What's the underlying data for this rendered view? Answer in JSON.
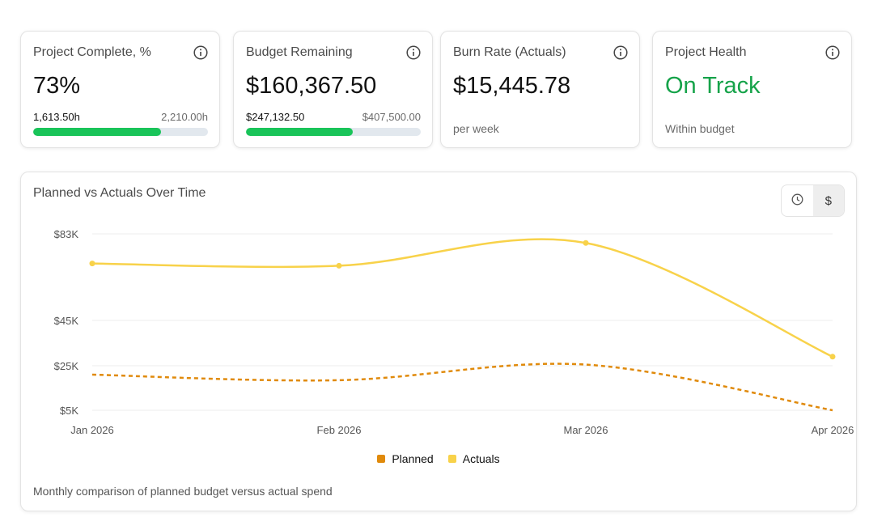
{
  "cards": [
    {
      "title": "Project Complete, %",
      "value": "73%",
      "range_left": "1,613.50h",
      "range_right": "2,210.00h",
      "progress": 0.73
    },
    {
      "title": "Budget Remaining",
      "value": "$160,367.50",
      "range_left": "$247,132.50",
      "range_right": "$407,500.00",
      "progress": 0.61
    },
    {
      "title": "Burn Rate (Actuals)",
      "value": "$15,445.78",
      "sub": "per week"
    },
    {
      "title": "Project Health",
      "value": "On Track",
      "sub": "Within budget"
    }
  ],
  "icons": {
    "info": "info-icon",
    "clock": "clock-icon"
  },
  "colors": {
    "progress_fill": "#19c459",
    "health_green": "#16a34a",
    "planned": "#e08a0b",
    "actuals": "#f8d24a"
  },
  "chart_toggle": {
    "dollar_label": "$",
    "active": "dollar"
  },
  "chart_footnote": "Monthly comparison of planned budget versus actual spend",
  "chart_data": {
    "type": "line",
    "title": "Planned vs Actuals Over Time",
    "categories": [
      "Jan 2026",
      "Feb 2026",
      "Mar 2026",
      "Apr 2026"
    ],
    "y_ticks": [
      {
        "value": 5000,
        "label": "$5K"
      },
      {
        "value": 25000,
        "label": "$25K"
      },
      {
        "value": 45000,
        "label": "$45K"
      },
      {
        "value": 83000,
        "label": "$83K"
      }
    ],
    "ylim": [
      5000,
      83000
    ],
    "y_scale": "nonlinear ticks",
    "grid": true,
    "legend": "bottom",
    "series": [
      {
        "name": "Planned",
        "values": [
          21000,
          18500,
          25500,
          5000
        ],
        "style": "dashed",
        "color": "#e08a0b"
      },
      {
        "name": "Actuals",
        "values": [
          70000,
          69000,
          79000,
          29000
        ],
        "style": "solid",
        "color": "#f8d24a"
      }
    ]
  }
}
